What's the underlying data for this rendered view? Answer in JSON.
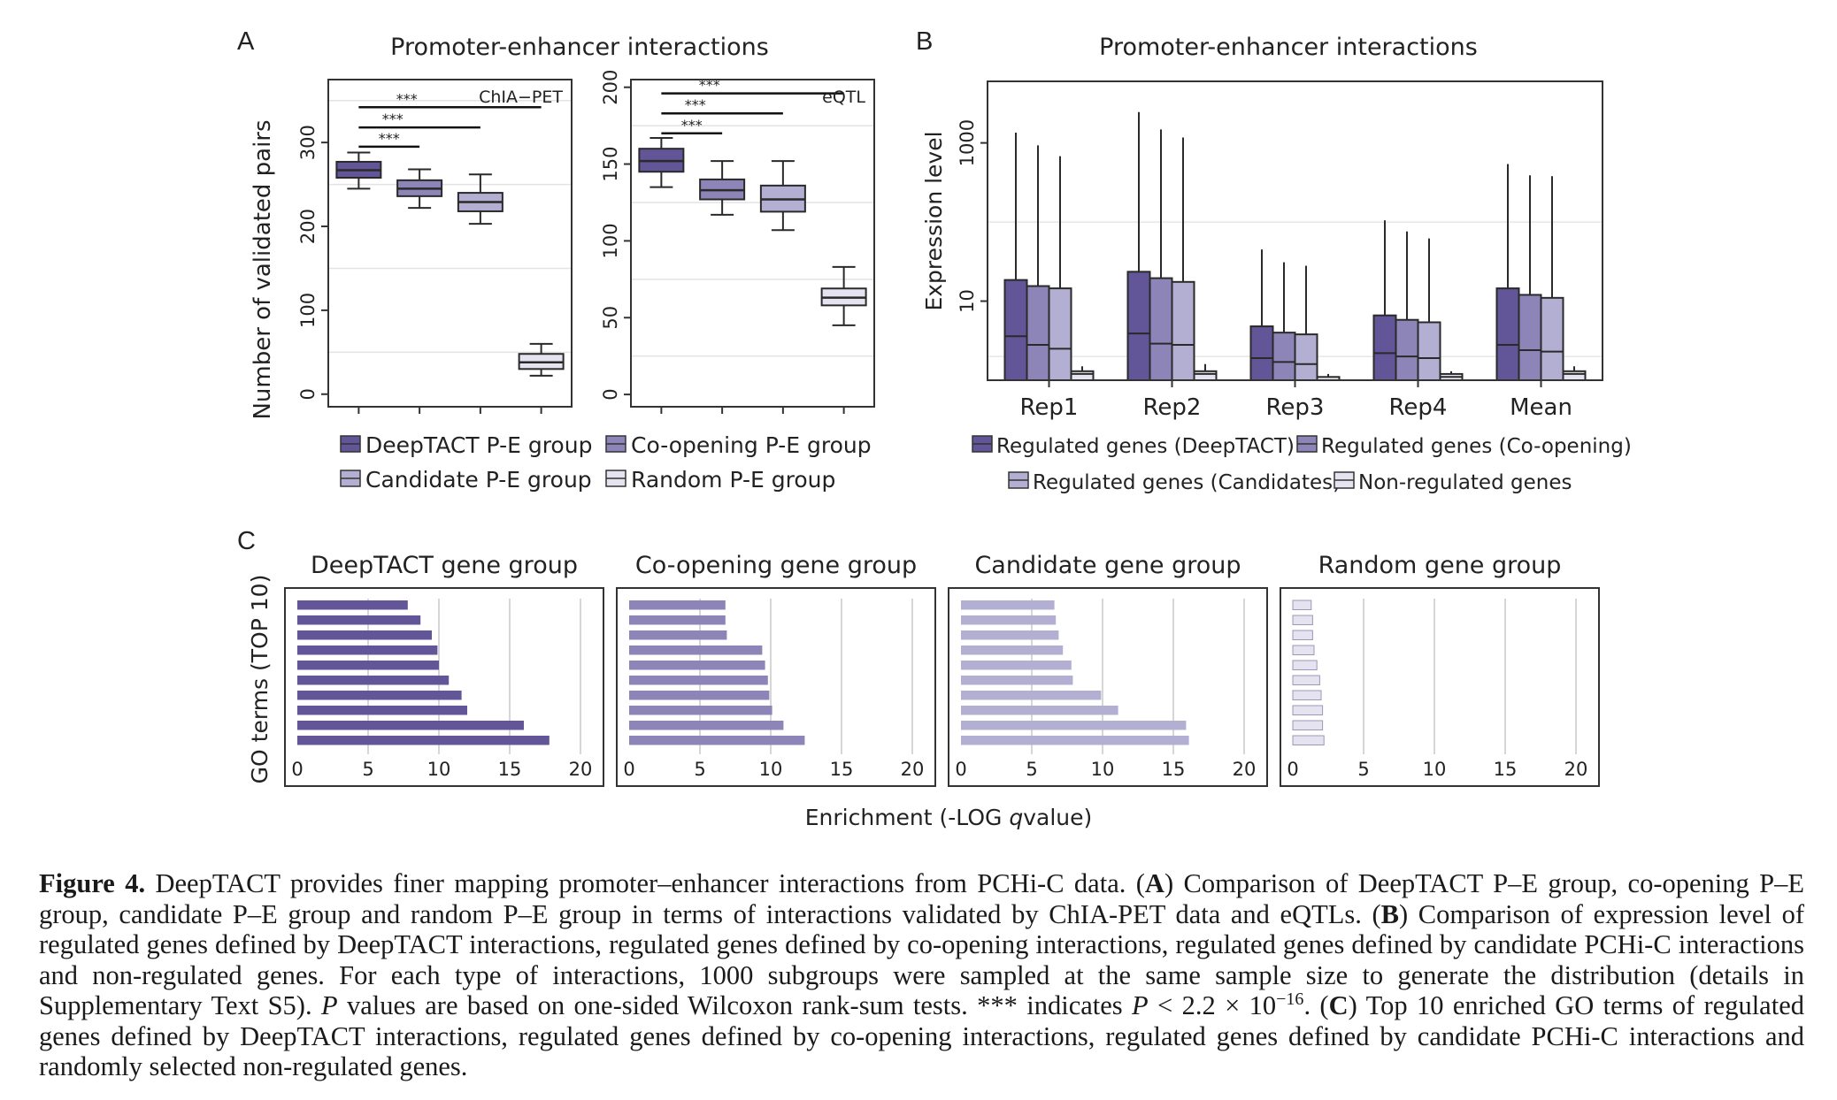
{
  "panel_labels": [
    "A",
    "B",
    "C"
  ],
  "colors": {
    "c1": "#625598",
    "c2": "#8d84b7",
    "c3": "#b3afd2",
    "c4": "#e4e3ef"
  },
  "chart_data": [
    {
      "id": "A-left",
      "type": "box",
      "panel": "A",
      "title": "Promoter-enhancer interactions",
      "tag": "ChIA−PET",
      "ylabel": "Number of validated pairs",
      "ylim": [
        -15,
        375
      ],
      "yticks": [
        0,
        100,
        200,
        300
      ],
      "categories": [
        "DeepTACT P-E group",
        "Co-opening P-E group",
        "Candidate P-E group",
        "Random P-E group"
      ],
      "boxes": [
        {
          "whislo": 245,
          "q1": 258,
          "med": 267,
          "q3": 277,
          "whishi": 288
        },
        {
          "whislo": 222,
          "q1": 236,
          "med": 245,
          "q3": 255,
          "whishi": 268
        },
        {
          "whislo": 203,
          "q1": 218,
          "med": 229,
          "q3": 240,
          "whishi": 262
        },
        {
          "whislo": 22,
          "q1": 30,
          "med": 38,
          "q3": 48,
          "whishi": 60
        }
      ],
      "brackets": [
        {
          "from": 0,
          "to": 1,
          "y": 295,
          "label": "***"
        },
        {
          "from": 0,
          "to": 2,
          "y": 318,
          "label": "***"
        },
        {
          "from": 0,
          "to": 3,
          "y": 342,
          "label": "***"
        }
      ]
    },
    {
      "id": "A-right",
      "type": "box",
      "panel": "A",
      "tag": "eQTL",
      "ylim": [
        -8,
        205
      ],
      "yticks": [
        0,
        50,
        100,
        150,
        200
      ],
      "categories": [
        "DeepTACT P-E group",
        "Co-opening P-E group",
        "Candidate P-E group",
        "Random P-E group"
      ],
      "boxes": [
        {
          "whislo": 135,
          "q1": 145,
          "med": 152,
          "q3": 160,
          "whishi": 167
        },
        {
          "whislo": 117,
          "q1": 127,
          "med": 133,
          "q3": 140,
          "whishi": 152
        },
        {
          "whislo": 107,
          "q1": 119,
          "med": 127,
          "q3": 136,
          "whishi": 152
        },
        {
          "whislo": 45,
          "q1": 58,
          "med": 63,
          "q3": 69,
          "whishi": 83
        }
      ],
      "brackets": [
        {
          "from": 0,
          "to": 1,
          "y": 170,
          "label": "***"
        },
        {
          "from": 0,
          "to": 2,
          "y": 183,
          "label": "***"
        },
        {
          "from": 0,
          "to": 3,
          "y": 196,
          "label": "***"
        }
      ]
    },
    {
      "id": "B",
      "type": "box",
      "panel": "B",
      "title": "Promoter-enhancer interactions",
      "ylabel": "Expression level",
      "yscale": "log",
      "ylim": [
        1.0,
        6000
      ],
      "yticks": [
        10,
        1000
      ],
      "categories": [
        "Rep1",
        "Rep2",
        "Rep3",
        "Rep4",
        "Mean"
      ],
      "series_names": [
        "Regulated genes (DeepTACT)",
        "Regulated genes (Co-opening)",
        "Regulated genes (Candidates)",
        "Non-regulated genes"
      ],
      "groups": [
        [
          {
            "whislo": 1.0,
            "q1": 1.0,
            "med": 3.6,
            "q3": 18.5,
            "whishi": 1350
          },
          {
            "whislo": 1.0,
            "q1": 1.0,
            "med": 2.8,
            "q3": 15.5,
            "whishi": 930
          },
          {
            "whislo": 1.0,
            "q1": 1.0,
            "med": 2.5,
            "q3": 14.5,
            "whishi": 680
          },
          {
            "whislo": 1.0,
            "q1": 1.0,
            "med": 1.2,
            "q3": 1.3,
            "whishi": 1.5
          }
        ],
        [
          {
            "whislo": 1.0,
            "q1": 1.0,
            "med": 3.9,
            "q3": 23.5,
            "whishi": 2450
          },
          {
            "whislo": 1.0,
            "q1": 1.0,
            "med": 2.9,
            "q3": 19.5,
            "whishi": 1480
          },
          {
            "whislo": 1.0,
            "q1": 1.0,
            "med": 2.8,
            "q3": 17.5,
            "whishi": 1170
          },
          {
            "whislo": 1.0,
            "q1": 1.0,
            "med": 1.2,
            "q3": 1.3,
            "whishi": 1.6
          }
        ],
        [
          {
            "whislo": 1.0,
            "q1": 1.0,
            "med": 1.9,
            "q3": 4.8,
            "whishi": 45
          },
          {
            "whislo": 1.0,
            "q1": 1.0,
            "med": 1.7,
            "q3": 4.0,
            "whishi": 31
          },
          {
            "whislo": 1.0,
            "q1": 1.0,
            "med": 1.6,
            "q3": 3.8,
            "whishi": 28
          },
          {
            "whislo": 1.0,
            "q1": 1.0,
            "med": 1.0,
            "q3": 1.1,
            "whishi": 1.2
          }
        ],
        [
          {
            "whislo": 1.0,
            "q1": 1.0,
            "med": 2.2,
            "q3": 6.6,
            "whishi": 105
          },
          {
            "whislo": 1.0,
            "q1": 1.0,
            "med": 2.0,
            "q3": 5.8,
            "whishi": 76
          },
          {
            "whislo": 1.0,
            "q1": 1.0,
            "med": 1.9,
            "q3": 5.4,
            "whishi": 62
          },
          {
            "whislo": 1.0,
            "q1": 1.0,
            "med": 1.1,
            "q3": 1.2,
            "whishi": 1.3
          }
        ],
        [
          {
            "whislo": 1.0,
            "q1": 1.0,
            "med": 2.8,
            "q3": 14.5,
            "whishi": 540
          },
          {
            "whislo": 1.0,
            "q1": 1.0,
            "med": 2.4,
            "q3": 12.0,
            "whishi": 390
          },
          {
            "whislo": 1.0,
            "q1": 1.0,
            "med": 2.3,
            "q3": 11.0,
            "whishi": 380
          },
          {
            "whislo": 1.0,
            "q1": 1.0,
            "med": 1.2,
            "q3": 1.3,
            "whishi": 1.5
          }
        ]
      ]
    },
    {
      "id": "C",
      "type": "bar",
      "orientation": "horizontal",
      "panel": "C",
      "ylabel": "GO terms (TOP 10)",
      "xlabel_prefix": "Enrichment (-LOG ",
      "xlabel_italic": "q",
      "xlabel_suffix": "value)",
      "xlim": [
        0,
        21
      ],
      "xticks": [
        0,
        5,
        10,
        15,
        20
      ],
      "series": [
        {
          "name": "DeepTACT gene group",
          "values": [
            7.8,
            8.7,
            9.5,
            9.9,
            10.0,
            10.7,
            11.6,
            12.0,
            16.0,
            17.8
          ]
        },
        {
          "name": "Co-opening gene group",
          "values": [
            6.8,
            6.8,
            6.9,
            9.4,
            9.6,
            9.8,
            9.9,
            10.1,
            10.9,
            12.4
          ]
        },
        {
          "name": "Candidate gene group",
          "values": [
            6.6,
            6.7,
            6.9,
            7.2,
            7.8,
            7.9,
            9.9,
            11.1,
            15.9,
            16.1
          ]
        },
        {
          "name": "Random gene group",
          "values": [
            1.3,
            1.4,
            1.4,
            1.5,
            1.7,
            1.9,
            2.0,
            2.1,
            2.1,
            2.2
          ]
        }
      ]
    }
  ],
  "caption": {
    "fig_label": "Figure 4.",
    "p1": " DeepTACT provides finer mapping promoter–enhancer interactions from PCHi-C data. (",
    "b1": "A",
    "p2": ") Comparison of DeepTACT P–E group, co-opening P–E group, candidate P–E group and random P–E group in terms of interactions validated by ChIA-PET data and eQTLs. (",
    "b2": "B",
    "p3": ") Comparison of expression level of regulated genes defined by DeepTACT interactions, regulated genes defined by co-opening interactions, regulated genes defined by candidate PCHi-C interactions and non-regulated genes. For each type of interactions, 1000 subgroups were sampled at the same sample size to generate the distribution (details in Supplementary Text S5). ",
    "i1": "P",
    "p4": " values are based on one-sided Wilcoxon rank-sum tests. *** indicates ",
    "i2": "P",
    "p5": " < 2.2 × 10",
    "sup": "−16",
    "p6": ". (",
    "b3": "C",
    "p7": ") Top 10 enriched GO terms of regulated genes defined by DeepTACT interactions, regulated genes defined by co-opening interactions, regulated genes defined by candidate PCHi-C interactions and randomly selected non-regulated genes."
  }
}
